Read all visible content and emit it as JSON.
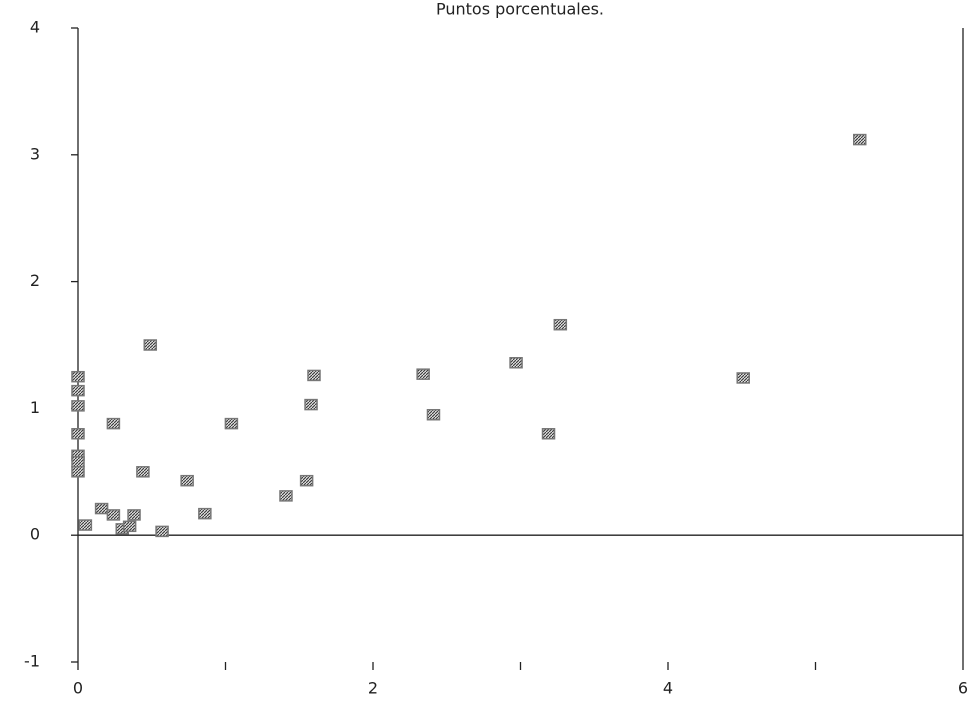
{
  "chart_data": {
    "type": "scatter",
    "title": "Puntos porcentuales.",
    "x": [
      0,
      0,
      0,
      0,
      0,
      0,
      0,
      0.05,
      0.49,
      0.24,
      0.44,
      0.16,
      0.24,
      0.3,
      0.35,
      0.38,
      0.57,
      0.74,
      0.86,
      1.04,
      1.41,
      1.55,
      1.58,
      1.6,
      2.34,
      2.41,
      2.97,
      3.19,
      3.27,
      4.51,
      5.3
    ],
    "values": [
      1.25,
      1.14,
      1.02,
      0.8,
      0.63,
      0.58,
      0.5,
      0.08,
      1.5,
      0.88,
      0.5,
      0.21,
      0.16,
      0.05,
      0.07,
      0.16,
      0.03,
      0.43,
      0.17,
      0.88,
      0.31,
      0.43,
      1.03,
      1.26,
      1.27,
      0.95,
      1.36,
      0.8,
      1.66,
      1.24,
      3.12
    ],
    "color": "#777777",
    "xlim": [
      0,
      6
    ],
    "xticks": [
      0,
      2,
      4,
      6
    ],
    "xminor_ticks": [
      1,
      3,
      5
    ],
    "ylim": [
      -1,
      4
    ],
    "yticks": [
      -1,
      0,
      1,
      2,
      3,
      4
    ],
    "zero_line": true
  }
}
